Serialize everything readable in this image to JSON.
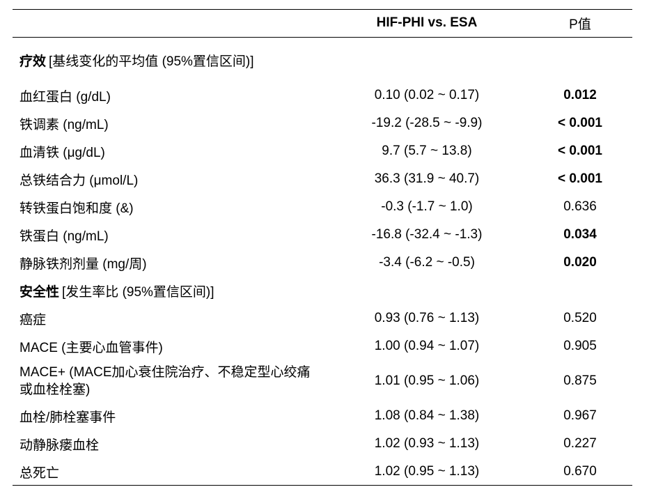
{
  "header": {
    "comparison": "HIF-PHI vs. ESA",
    "p_value": "P值"
  },
  "sections": [
    {
      "title": "疗效",
      "subtitle": "[基线变化的平均值 (95%置信区间)]",
      "rows": [
        {
          "label": "血红蛋白 (g/dL)",
          "ci": "0.10 (0.02 ~ 0.17)",
          "p": "0.012",
          "significant": true
        },
        {
          "label": "铁调素 (ng/mL)",
          "ci": "-19.2 (-28.5 ~ -9.9)",
          "p": "< 0.001",
          "significant": true
        },
        {
          "label": "血清铁 (μg/dL)",
          "ci": "9.7 (5.7 ~ 13.8)",
          "p": "< 0.001",
          "significant": true
        },
        {
          "label": "总铁结合力 (μmol/L)",
          "ci": "36.3 (31.9 ~ 40.7)",
          "p": "< 0.001",
          "significant": true
        },
        {
          "label": "转铁蛋白饱和度 (&)",
          "ci": "-0.3 (-1.7 ~ 1.0)",
          "p": "0.636",
          "significant": false
        },
        {
          "label": "铁蛋白 (ng/mL)",
          "ci": "-16.8 (-32.4 ~ -1.3)",
          "p": "0.034",
          "significant": true
        },
        {
          "label": "静脉铁剂剂量 (mg/周)",
          "ci": "-3.4 (-6.2 ~ -0.5)",
          "p": "0.020",
          "significant": true
        }
      ]
    },
    {
      "title": "安全性",
      "subtitle": "[发生率比 (95%置信区间)]",
      "rows": [
        {
          "label": "癌症",
          "ci": "0.93 (0.76 ~ 1.13)",
          "p": "0.520",
          "significant": false
        },
        {
          "label": "MACE (主要心血管事件)",
          "ci": "1.00 (0.94 ~ 1.07)",
          "p": "0.905",
          "significant": false
        },
        {
          "label": "MACE+ (MACE加心衰住院治疗、不稳定型心绞痛或血栓栓塞)",
          "ci": "1.01 (0.95 ~ 1.06)",
          "p": "0.875",
          "significant": false
        },
        {
          "label": "血栓/肺栓塞事件",
          "ci": "1.08 (0.84 ~ 1.38)",
          "p": "0.967",
          "significant": false
        },
        {
          "label": "动静脉瘘血栓",
          "ci": "1.02 (0.93 ~ 1.13)",
          "p": "0.227",
          "significant": false
        },
        {
          "label": "总死亡",
          "ci": "1.02 (0.95 ~ 1.13)",
          "p": "0.670",
          "significant": false
        }
      ]
    }
  ]
}
